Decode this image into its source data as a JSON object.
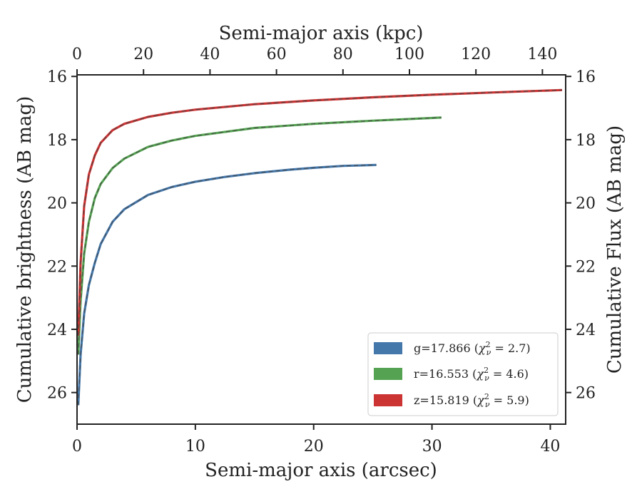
{
  "chart_data": {
    "type": "line",
    "title": "",
    "xlabel": "Semi-major axis (arcsec)",
    "x2label": "Semi-major axis (kpc)",
    "ylabel": "Cumulative brightness (AB mag)",
    "y2label": "Cumulative Flux (AB mag)",
    "xlim": [
      0,
      41.3
    ],
    "x2lim": [
      0,
      147
    ],
    "ylim": [
      27.0,
      15.95
    ],
    "y_inverted": true,
    "xticks": [
      0,
      10,
      20,
      30,
      40
    ],
    "x2ticks": [
      0,
      20,
      40,
      60,
      80,
      100,
      120,
      140
    ],
    "yticks": [
      16,
      18,
      20,
      22,
      24,
      26
    ],
    "grid": false,
    "legend_position": "lower-right",
    "series": [
      {
        "name": "g=17.866",
        "chi2": "2.7",
        "color": "#4477AA",
        "x": [
          0.1,
          0.3,
          0.6,
          1,
          1.5,
          2,
          3,
          4,
          6,
          8,
          10,
          12.5,
          15,
          18,
          20,
          22.5,
          25.3
        ],
        "y": [
          26.4,
          24.8,
          23.5,
          22.6,
          21.9,
          21.3,
          20.6,
          20.2,
          19.75,
          19.5,
          19.33,
          19.18,
          19.06,
          18.95,
          18.89,
          18.83,
          18.8
        ]
      },
      {
        "name": "r=16.553",
        "chi2": "4.6",
        "color": "#55A352",
        "x": [
          0.1,
          0.3,
          0.6,
          1,
          1.5,
          2,
          3,
          4,
          6,
          8,
          10,
          15,
          20,
          25,
          30.8
        ],
        "y": [
          24.8,
          23.1,
          21.6,
          20.6,
          19.85,
          19.4,
          18.9,
          18.6,
          18.23,
          18.03,
          17.88,
          17.63,
          17.5,
          17.4,
          17.3
        ]
      },
      {
        "name": "z=15.819",
        "chi2": "5.9",
        "color": "#CC3333",
        "x": [
          0.1,
          0.3,
          0.6,
          1,
          1.5,
          2,
          3,
          4,
          6,
          8,
          10,
          15,
          20,
          25,
          30,
          35,
          41.0
        ],
        "y": [
          24.2,
          21.9,
          20.1,
          19.1,
          18.5,
          18.1,
          17.7,
          17.5,
          17.28,
          17.15,
          17.05,
          16.88,
          16.76,
          16.66,
          16.58,
          16.51,
          16.43
        ]
      }
    ]
  },
  "legend": {
    "items": [
      {
        "label": "g=17.866",
        "chi2_symbol": "χ",
        "chi2_sup": "2",
        "chi2_sub": "ν",
        "chi2_value": "= 2.7"
      },
      {
        "label": "r=16.553",
        "chi2_symbol": "χ",
        "chi2_sup": "2",
        "chi2_sub": "ν",
        "chi2_value": "= 4.6"
      },
      {
        "label": "z=15.819",
        "chi2_symbol": "χ",
        "chi2_sup": "2",
        "chi2_sub": "ν",
        "chi2_value": "= 5.9"
      }
    ]
  }
}
